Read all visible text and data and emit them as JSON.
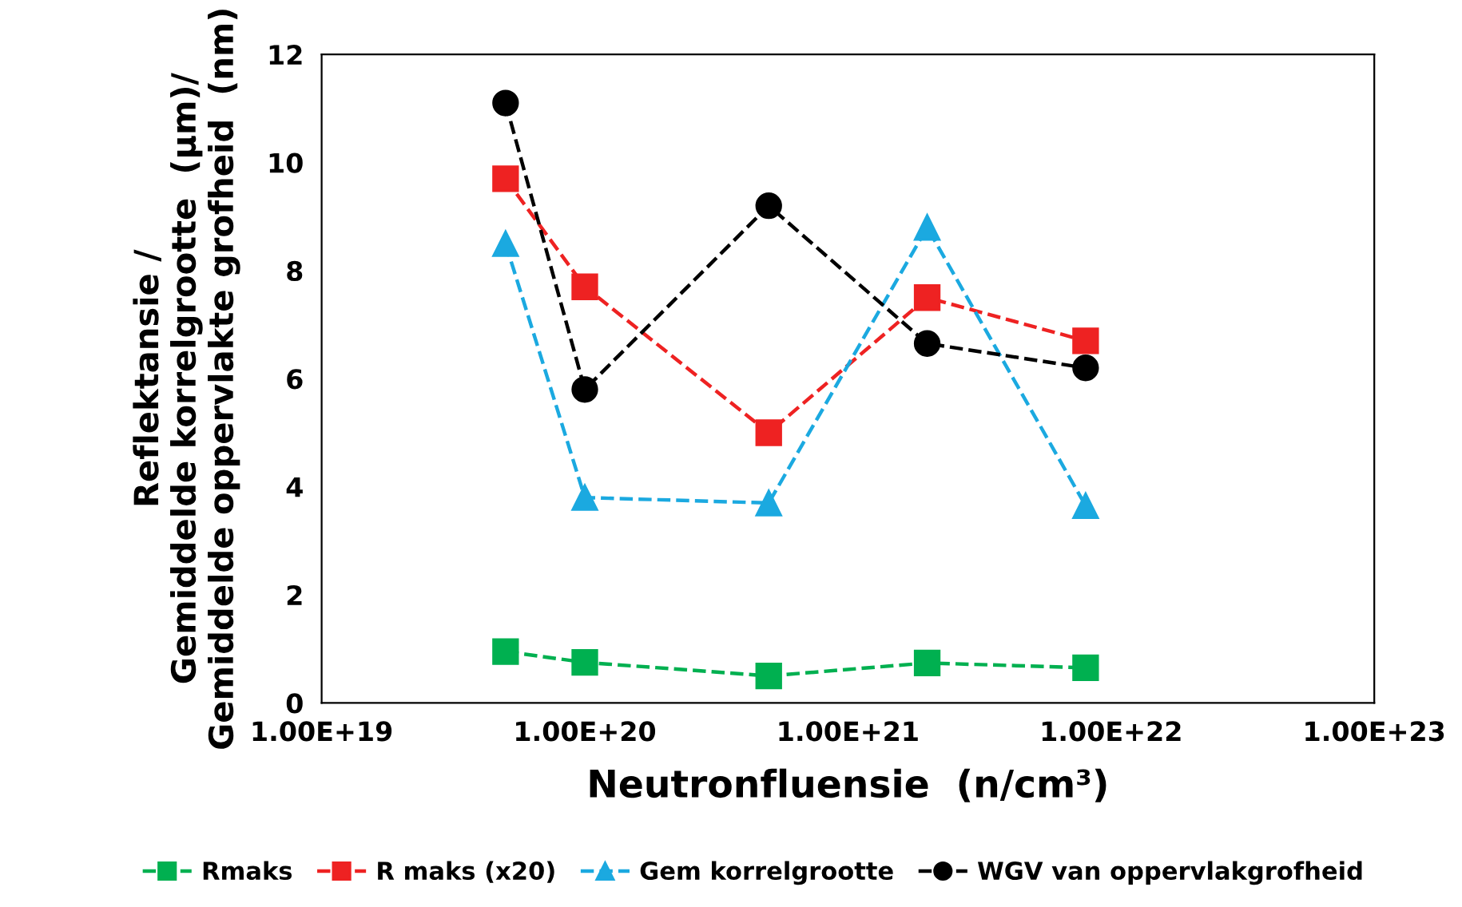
{
  "chart_data": {
    "type": "line",
    "xlabel": "Neutronfluensie  (n/cm³)",
    "ylabel": "Reflektansie /\nGemiddelde korrelgrootte  (μm)/\nGemiddelde oppervlakte grofheid  (nm)",
    "x": [
      5e+19,
      1e+20,
      5e+20,
      2e+21,
      8e+21
    ],
    "series": [
      {
        "name": "Rmaks",
        "color": "#00b050",
        "marker": "square",
        "values": [
          0.95,
          0.75,
          0.5,
          0.74,
          0.65
        ]
      },
      {
        "name": "R maks (x20)",
        "color": "#ee2222",
        "marker": "square",
        "values": [
          9.7,
          7.7,
          5.0,
          7.5,
          6.7
        ]
      },
      {
        "name": "Gem korrelgrootte",
        "color": "#1ba9e0",
        "marker": "triangle",
        "values": [
          8.5,
          3.8,
          3.7,
          8.8,
          3.65
        ]
      },
      {
        "name": "WGV van oppervlakgrofheid",
        "color": "#000000",
        "marker": "circle",
        "values": [
          11.1,
          5.8,
          9.2,
          6.65,
          6.2
        ]
      }
    ],
    "log": "x",
    "xlim": [
      1e+19,
      1e+23
    ],
    "xticks": [
      {
        "value": 1e+19,
        "label": "1.00E+19"
      },
      {
        "value": 1e+20,
        "label": "1.00E+20"
      },
      {
        "value": 1e+21,
        "label": "1.00E+21"
      },
      {
        "value": 1e+22,
        "label": "1.00E+22"
      },
      {
        "value": 1e+23,
        "label": "1.00E+23"
      }
    ],
    "ylim": [
      0,
      12
    ],
    "yticks": [
      0,
      2,
      4,
      6,
      8,
      10,
      12
    ],
    "line_style": "dashed",
    "grid": false,
    "legend": "bottom"
  }
}
